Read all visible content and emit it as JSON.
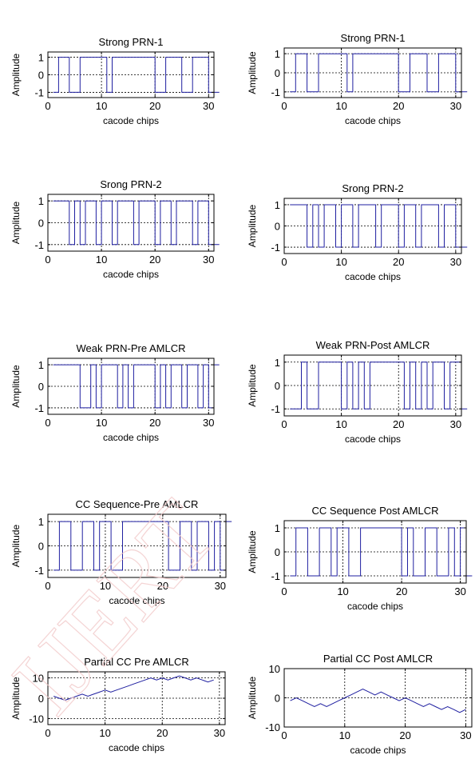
{
  "watermark_text": "IJERT",
  "colors": {
    "line": "#1f1fa0",
    "axis": "#000000",
    "grid": "#000000",
    "background": "#ffffff"
  },
  "chart_data": [
    {
      "type": "line",
      "title": "Strong PRN-1",
      "xlabel": "cacode chips",
      "ylabel": "Amplitude",
      "xlim": [
        0,
        31
      ],
      "ylim": [
        -1.3,
        1.3
      ],
      "xticks": [
        0,
        10,
        20,
        30
      ],
      "xtick_labels": [
        "0",
        "10",
        "20",
        "30"
      ],
      "yticks": [
        1,
        0,
        -1
      ],
      "ytick_labels": [
        "1",
        "0",
        "-1"
      ],
      "grid": true,
      "step": true,
      "series": [
        {
          "values": [
            -1,
            1,
            1,
            -1,
            -1,
            1,
            1,
            1,
            1,
            1,
            -1,
            1,
            1,
            1,
            1,
            1,
            1,
            1,
            1,
            -1,
            -1,
            1,
            1,
            1,
            -1,
            -1,
            1,
            1,
            1,
            -1,
            -1
          ]
        }
      ]
    },
    {
      "type": "line",
      "title": "Strong PRN-1",
      "xlabel": "cacode chips",
      "ylabel": "Amplitude",
      "xlim": [
        0,
        31
      ],
      "ylim": [
        -1.3,
        1.3
      ],
      "xticks": [
        0,
        10,
        20,
        30
      ],
      "xtick_labels": [
        "0",
        "10",
        "20",
        "30"
      ],
      "yticks": [
        1,
        0,
        -1
      ],
      "ytick_labels": [
        "1",
        "0",
        "-1"
      ],
      "grid": true,
      "step": true,
      "series": [
        {
          "values": [
            -1,
            1,
            1,
            -1,
            -1,
            1,
            1,
            1,
            1,
            1,
            -1,
            1,
            1,
            1,
            1,
            1,
            1,
            1,
            1,
            -1,
            -1,
            1,
            1,
            1,
            -1,
            -1,
            1,
            1,
            1,
            -1,
            -1
          ]
        }
      ]
    },
    {
      "type": "line",
      "title": "Srong PRN-2",
      "xlabel": "cacode chips",
      "ylabel": "Amplitude",
      "xlim": [
        0,
        31
      ],
      "ylim": [
        -1.3,
        1.3
      ],
      "xticks": [
        0,
        10,
        20,
        30
      ],
      "xtick_labels": [
        "0",
        "10",
        "20",
        "30"
      ],
      "yticks": [
        1,
        0,
        -1
      ],
      "ytick_labels": [
        "1",
        "0",
        "-1"
      ],
      "grid": true,
      "step": true,
      "series": [
        {
          "values": [
            1,
            1,
            1,
            -1,
            1,
            -1,
            1,
            1,
            -1,
            1,
            1,
            -1,
            1,
            1,
            1,
            -1,
            1,
            1,
            1,
            -1,
            1,
            1,
            -1,
            1,
            1,
            1,
            -1,
            1,
            1,
            -1,
            -1
          ]
        }
      ]
    },
    {
      "type": "line",
      "title": "Srong PRN-2",
      "xlabel": "cacode chips",
      "ylabel": "Amplitude",
      "xlim": [
        0,
        31
      ],
      "ylim": [
        -1.3,
        1.3
      ],
      "xticks": [
        0,
        10,
        20,
        30
      ],
      "xtick_labels": [
        "0",
        "10",
        "20",
        "30"
      ],
      "yticks": [
        1,
        0,
        -1
      ],
      "ytick_labels": [
        "1",
        "0",
        "-1"
      ],
      "grid": true,
      "step": true,
      "series": [
        {
          "values": [
            1,
            1,
            1,
            -1,
            1,
            -1,
            1,
            1,
            -1,
            1,
            1,
            -1,
            1,
            1,
            1,
            -1,
            1,
            1,
            1,
            -1,
            1,
            1,
            -1,
            1,
            1,
            1,
            -1,
            1,
            1,
            -1,
            -1
          ]
        }
      ]
    },
    {
      "type": "line",
      "title": "Weak PRN-Pre AMLCR",
      "xlabel": "cacode chips",
      "ylabel": "Amplitude",
      "xlim": [
        0,
        31
      ],
      "ylim": [
        -1.3,
        1.3
      ],
      "xticks": [
        0,
        10,
        20,
        30
      ],
      "xtick_labels": [
        "0",
        "10",
        "20",
        "30"
      ],
      "yticks": [
        1,
        0,
        -1
      ],
      "ytick_labels": [
        "1",
        "0",
        "-1"
      ],
      "grid": true,
      "step": true,
      "series": [
        {
          "values": [
            1,
            1,
            1,
            1,
            1,
            -1,
            -1,
            1,
            -1,
            1,
            1,
            1,
            -1,
            1,
            -1,
            1,
            1,
            1,
            1,
            -1,
            1,
            -1,
            1,
            1,
            -1,
            1,
            1,
            -1,
            1,
            -1,
            1
          ]
        }
      ]
    },
    {
      "type": "line",
      "title": "Weak PRN-Post AMLCR",
      "xlabel": "cacode chips",
      "ylabel": "Amplitude",
      "xlim": [
        0,
        31
      ],
      "ylim": [
        -1.3,
        1.3
      ],
      "xticks": [
        0,
        10,
        20,
        30
      ],
      "xtick_labels": [
        "0",
        "10",
        "20",
        "30"
      ],
      "yticks": [
        1,
        0,
        -1
      ],
      "ytick_labels": [
        "1",
        "0",
        "-1"
      ],
      "grid": true,
      "step": true,
      "series": [
        {
          "values": [
            -1,
            -1,
            1,
            -1,
            -1,
            1,
            1,
            1,
            1,
            -1,
            1,
            -1,
            1,
            -1,
            1,
            1,
            1,
            1,
            1,
            1,
            -1,
            1,
            -1,
            1,
            -1,
            1,
            1,
            -1,
            1,
            1,
            -1
          ]
        }
      ]
    },
    {
      "type": "line",
      "title": "CC Sequence-Pre AMLCR",
      "xlabel": "cacode chips",
      "ylabel": "Amplitude",
      "xlim": [
        0,
        31
      ],
      "ylim": [
        -1.3,
        1.3
      ],
      "xticks": [
        0,
        10,
        20,
        30
      ],
      "xtick_labels": [
        "0",
        "10",
        "20",
        "30"
      ],
      "yticks": [
        1,
        0,
        -1
      ],
      "ytick_labels": [
        "1",
        "0",
        "-1"
      ],
      "grid": true,
      "step": true,
      "series": [
        {
          "values": [
            -1,
            1,
            1,
            -1,
            -1,
            1,
            1,
            -1,
            1,
            1,
            -1,
            -1,
            1,
            1,
            1,
            1,
            1,
            1,
            1,
            1,
            -1,
            -1,
            1,
            1,
            -1,
            1,
            1,
            -1,
            1,
            -1,
            1
          ]
        }
      ]
    },
    {
      "type": "line",
      "title": "CC Sequence Post AMLCR",
      "xlabel": "cacode chips",
      "ylabel": "Amplitude",
      "xlim": [
        0,
        31
      ],
      "ylim": [
        -1.3,
        1.3
      ],
      "xticks": [
        0,
        10,
        20,
        30
      ],
      "xtick_labels": [
        "0",
        "10",
        "20",
        "30"
      ],
      "yticks": [
        1,
        0,
        -1
      ],
      "ytick_labels": [
        "1",
        "0",
        "-1"
      ],
      "grid": true,
      "step": true,
      "series": [
        {
          "values": [
            -1,
            1,
            1,
            -1,
            -1,
            1,
            1,
            -1,
            1,
            1,
            -1,
            -1,
            1,
            1,
            1,
            1,
            1,
            1,
            1,
            -1,
            1,
            -1,
            -1,
            1,
            1,
            -1,
            -1,
            1,
            -1,
            1,
            -1
          ]
        }
      ]
    },
    {
      "type": "line",
      "title": "Partial CC Pre AMLCR",
      "xlabel": "cacode chips",
      "ylabel": "Amplitude",
      "xlim": [
        0,
        31
      ],
      "ylim": [
        -13,
        13
      ],
      "xticks": [
        0,
        10,
        20,
        30
      ],
      "xtick_labels": [
        "0",
        "10",
        "20",
        "30"
      ],
      "yticks": [
        10,
        0,
        -10
      ],
      "ytick_labels": [
        "10",
        "0",
        "-10"
      ],
      "grid": true,
      "step": false,
      "series": [
        {
          "values": [
            1,
            0,
            -1,
            0,
            1,
            2,
            1,
            2,
            3,
            4,
            3,
            4,
            5,
            6,
            7,
            8,
            9,
            10,
            9,
            10,
            9,
            10,
            11,
            10,
            9,
            10,
            9,
            8,
            9
          ]
        }
      ],
      "x": [
        1,
        2,
        3,
        4,
        5,
        6,
        7,
        8,
        9,
        10,
        11,
        12,
        13,
        14,
        15,
        16,
        17,
        18,
        19,
        20,
        21,
        22,
        23,
        24,
        25,
        26,
        27,
        28,
        29
      ]
    },
    {
      "type": "line",
      "title": "Partial CC Post AMLCR",
      "xlabel": "cacode chips",
      "ylabel": "Amplitude",
      "xlim": [
        0,
        31
      ],
      "ylim": [
        -10,
        10
      ],
      "xticks": [
        0,
        10,
        20,
        30
      ],
      "xtick_labels": [
        "0",
        "10",
        "20",
        "30"
      ],
      "yticks": [
        10,
        0,
        -10
      ],
      "ytick_labels": [
        "10",
        "0",
        "-10"
      ],
      "grid": true,
      "step": false,
      "series": [
        {
          "values": [
            -1,
            0,
            -1,
            -2,
            -3,
            -2,
            -3,
            -2,
            -1,
            0,
            1,
            2,
            3,
            2,
            1,
            2,
            1,
            0,
            -1,
            0,
            -1,
            -2,
            -3,
            -2,
            -3,
            -4,
            -3,
            -4,
            -5,
            -4
          ]
        }
      ],
      "x": [
        1,
        2,
        3,
        4,
        5,
        6,
        7,
        8,
        9,
        10,
        11,
        12,
        13,
        14,
        15,
        16,
        17,
        18,
        19,
        20,
        21,
        22,
        23,
        24,
        25,
        26,
        27,
        28,
        29,
        30
      ]
    }
  ]
}
